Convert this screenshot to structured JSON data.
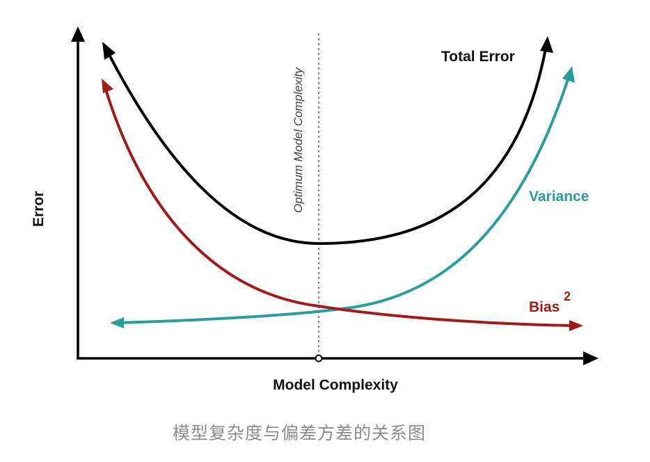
{
  "axes": {
    "x_label": "Model Complexity",
    "y_label": "Error"
  },
  "optimum_line_label": "Optimum Model Complexity",
  "curves": {
    "total_error": {
      "label": "Total Error",
      "color": "#000000"
    },
    "variance": {
      "label": "Variance",
      "color": "#2a9d9d"
    },
    "bias": {
      "label": "Bias",
      "superscript": "2",
      "color": "#a01a1a"
    }
  },
  "caption": "模型复杂度与偏差方差的关系图"
}
